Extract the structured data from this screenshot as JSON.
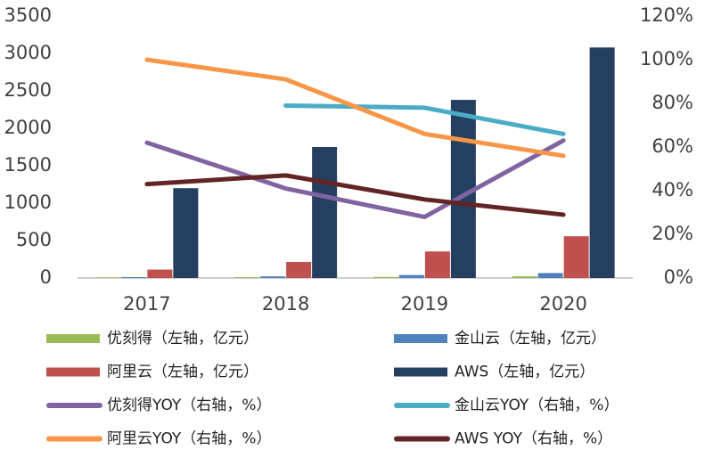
{
  "chart_data": {
    "type": "combo",
    "categories": [
      "2017",
      "2018",
      "2019",
      "2020"
    ],
    "ylim": [
      0,
      3500
    ],
    "yticks": [
      0,
      500,
      1000,
      1500,
      2000,
      2500,
      3000,
      3500
    ],
    "y2lim": [
      0,
      120
    ],
    "y2ticks": [
      {
        "value": 0,
        "label": "0%"
      },
      {
        "value": 20,
        "label": "20%"
      },
      {
        "value": 40,
        "label": "40%"
      },
      {
        "value": 60,
        "label": "60%"
      },
      {
        "value": 80,
        "label": "80%"
      },
      {
        "value": 100,
        "label": "100%"
      },
      {
        "value": 120,
        "label": "120%"
      }
    ],
    "grid": false,
    "series": [
      {
        "name": "优刻得（左轴，亿元）",
        "type": "bar",
        "color": "#9bbb59",
        "values": [
          8,
          12,
          15,
          24
        ]
      },
      {
        "name": "金山云（左轴，亿元）",
        "type": "bar",
        "color": "#4f81bd",
        "values": [
          12,
          22,
          40,
          66
        ]
      },
      {
        "name": "阿里云（左轴，亿元）",
        "type": "bar",
        "color": "#c0504d",
        "values": [
          112,
          214,
          355,
          558
        ]
      },
      {
        "name": "AWS（左轴，亿元）",
        "type": "bar",
        "color": "#243f60",
        "values": [
          1200,
          1750,
          2380,
          3080
        ]
      },
      {
        "name": "优刻得YOY（右轴，%）",
        "type": "line",
        "axis": "y2",
        "color": "#8064a2",
        "values": [
          62,
          41,
          28,
          63
        ]
      },
      {
        "name": "金山云YOY（右轴，%）",
        "type": "line",
        "axis": "y2",
        "color": "#4bacc6",
        "values": [
          null,
          79,
          78,
          66
        ]
      },
      {
        "name": "阿里云YOY（右轴，%）",
        "type": "line",
        "axis": "y2",
        "color": "#f79646",
        "values": [
          100,
          91,
          66,
          56
        ]
      },
      {
        "name": "AWS YOY（右轴，%）",
        "type": "line",
        "axis": "y2",
        "color": "#632523",
        "values": [
          43,
          47,
          36,
          29
        ]
      }
    ]
  }
}
